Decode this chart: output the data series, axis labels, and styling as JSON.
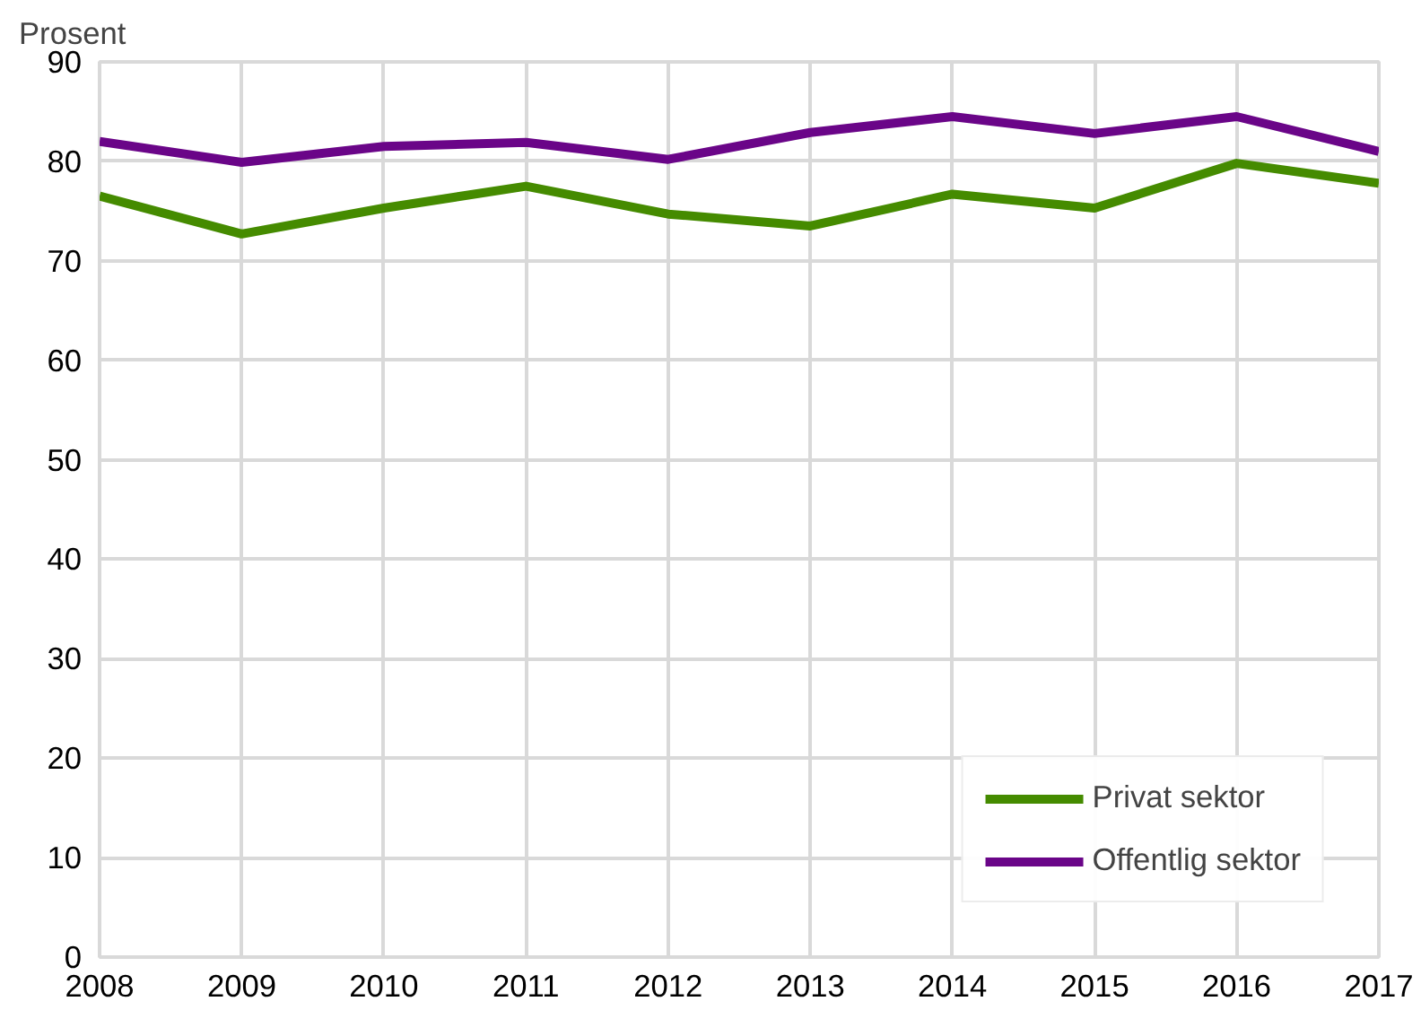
{
  "chart_data": {
    "type": "line",
    "ylabel": "Prosent",
    "x": [
      2008,
      2009,
      2010,
      2011,
      2012,
      2013,
      2014,
      2015,
      2016,
      2017
    ],
    "xlim": [
      2008,
      2017
    ],
    "xticks": [
      2008,
      2009,
      2010,
      2011,
      2012,
      2013,
      2014,
      2015,
      2016,
      2017
    ],
    "ylim": [
      0,
      90
    ],
    "yticks": [
      0,
      10,
      20,
      30,
      40,
      50,
      60,
      70,
      80,
      90
    ],
    "grid": true,
    "legend": "bottom right",
    "line_style": "solid",
    "series": [
      {
        "name": "Privat sektor",
        "color": "#458b00",
        "values": [
          76.5,
          72.7,
          75.3,
          77.5,
          74.7,
          73.5,
          76.7,
          75.3,
          79.8,
          77.8
        ]
      },
      {
        "name": "Offentlig sektor",
        "color": "#6a0588",
        "values": [
          82.0,
          79.9,
          81.5,
          81.9,
          80.2,
          82.9,
          84.5,
          82.8,
          84.5,
          81.0
        ]
      }
    ]
  }
}
